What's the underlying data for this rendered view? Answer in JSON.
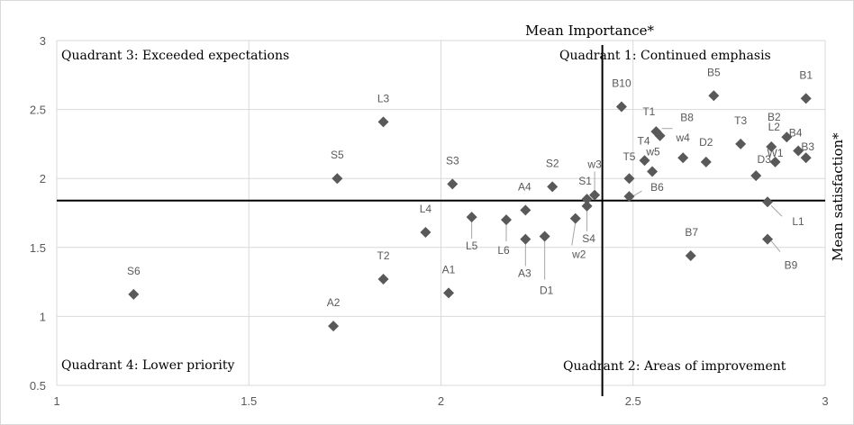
{
  "chart_data": {
    "type": "scatter",
    "xlabel": "Mean Importance*",
    "ylabel": "Mean satisfaction*",
    "xlim": [
      1,
      3
    ],
    "ylim": [
      0.5,
      3
    ],
    "xticks": [
      "1",
      "1.5",
      "2",
      "2.5",
      "3"
    ],
    "yticks": [
      "0.5",
      "1",
      "1.5",
      "2",
      "2.5",
      "3"
    ],
    "grid": true,
    "marker_color": "#595959",
    "divider_x": 2.42,
    "divider_y": 1.84,
    "quadrants": {
      "q1": "Quadrant 1: Continued emphasis",
      "q2": "Quadrant 2: Areas of improvement",
      "q3": "Quadrant 3: Exceeded expectations",
      "q4": "Quadrant 4: Lower priority"
    },
    "points": [
      {
        "label": "B1",
        "x": 2.95,
        "y": 2.58
      },
      {
        "label": "B5",
        "x": 2.71,
        "y": 2.6
      },
      {
        "label": "B10",
        "x": 2.47,
        "y": 2.52
      },
      {
        "label": "L3",
        "x": 1.85,
        "y": 2.41
      },
      {
        "label": "B2",
        "x": 2.9,
        "y": 2.3
      },
      {
        "label": "B8",
        "x": 2.57,
        "y": 2.31
      },
      {
        "label": "T1",
        "x": 2.56,
        "y": 2.34
      },
      {
        "label": "T3",
        "x": 2.78,
        "y": 2.25
      },
      {
        "label": "L2",
        "x": 2.86,
        "y": 2.23
      },
      {
        "label": "B4",
        "x": 2.93,
        "y": 2.2
      },
      {
        "label": "B3",
        "x": 2.95,
        "y": 2.15
      },
      {
        "label": "W1",
        "x": 2.87,
        "y": 2.12
      },
      {
        "label": "T4",
        "x": 2.53,
        "y": 2.13
      },
      {
        "label": "w4",
        "x": 2.63,
        "y": 2.15
      },
      {
        "label": "D2",
        "x": 2.69,
        "y": 2.12
      },
      {
        "label": "w5",
        "x": 2.55,
        "y": 2.05
      },
      {
        "label": "D3",
        "x": 2.82,
        "y": 2.02
      },
      {
        "label": "T5",
        "x": 2.49,
        "y": 2.0
      },
      {
        "label": "S5",
        "x": 1.73,
        "y": 2.0
      },
      {
        "label": "S3",
        "x": 2.03,
        "y": 1.96
      },
      {
        "label": "S2",
        "x": 2.29,
        "y": 1.94
      },
      {
        "label": "w3",
        "x": 2.4,
        "y": 1.88
      },
      {
        "label": "S1",
        "x": 2.38,
        "y": 1.85
      },
      {
        "label": "B6",
        "x": 2.49,
        "y": 1.87
      },
      {
        "label": "L1",
        "x": 2.85,
        "y": 1.83
      },
      {
        "label": "S4",
        "x": 2.38,
        "y": 1.8
      },
      {
        "label": "A4",
        "x": 2.22,
        "y": 1.77
      },
      {
        "label": "L5",
        "x": 2.08,
        "y": 1.72
      },
      {
        "label": "w2",
        "x": 2.35,
        "y": 1.71
      },
      {
        "label": "L6",
        "x": 2.17,
        "y": 1.7
      },
      {
        "label": "L4",
        "x": 1.96,
        "y": 1.61
      },
      {
        "label": "D1",
        "x": 2.27,
        "y": 1.58
      },
      {
        "label": "A3",
        "x": 2.22,
        "y": 1.56
      },
      {
        "label": "B9",
        "x": 2.85,
        "y": 1.56
      },
      {
        "label": "B7",
        "x": 2.65,
        "y": 1.44
      },
      {
        "label": "T2",
        "x": 1.85,
        "y": 1.27
      },
      {
        "label": "A1",
        "x": 2.02,
        "y": 1.17
      },
      {
        "label": "S6",
        "x": 1.2,
        "y": 1.16
      },
      {
        "label": "A2",
        "x": 1.72,
        "y": 0.93
      }
    ]
  }
}
